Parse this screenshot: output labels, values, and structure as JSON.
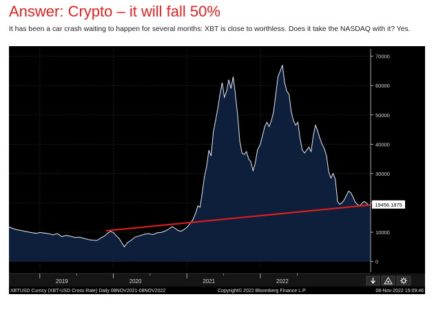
{
  "header": {
    "title": "Answer: Crypto – it will fall 50%",
    "subtitle": "It has been a car crash waiting to happen for several months: XBT is close to worthless. Does it take the NASDAQ with it? Yes."
  },
  "chart_data": {
    "type": "area",
    "series": [
      {
        "values": [
          [
            2018.58,
            11800
          ],
          [
            2018.64,
            11200
          ],
          [
            2018.7,
            10800
          ],
          [
            2018.76,
            10500
          ],
          [
            2018.82,
            10200
          ],
          [
            2018.88,
            9900
          ],
          [
            2018.95,
            9600
          ],
          [
            2019.0,
            9900
          ],
          [
            2019.06,
            9700
          ],
          [
            2019.12,
            9500
          ],
          [
            2019.18,
            9100
          ],
          [
            2019.24,
            9500
          ],
          [
            2019.3,
            8500
          ],
          [
            2019.36,
            8900
          ],
          [
            2019.42,
            8600
          ],
          [
            2019.48,
            8200
          ],
          [
            2019.54,
            8300
          ],
          [
            2019.6,
            7900
          ],
          [
            2019.66,
            7500
          ],
          [
            2019.72,
            7300
          ],
          [
            2019.78,
            7200
          ],
          [
            2019.84,
            8200
          ],
          [
            2019.88,
            8700
          ],
          [
            2019.92,
            9600
          ],
          [
            2019.96,
            10300
          ],
          [
            2020.0,
            9900
          ],
          [
            2020.04,
            8800
          ],
          [
            2020.08,
            7800
          ],
          [
            2020.12,
            6200
          ],
          [
            2020.15,
            5000
          ],
          [
            2020.19,
            6400
          ],
          [
            2020.24,
            7200
          ],
          [
            2020.3,
            8400
          ],
          [
            2020.36,
            8800
          ],
          [
            2020.42,
            9300
          ],
          [
            2020.48,
            9500
          ],
          [
            2020.54,
            9200
          ],
          [
            2020.6,
            9800
          ],
          [
            2020.66,
            10000
          ],
          [
            2020.72,
            10600
          ],
          [
            2020.76,
            11200
          ],
          [
            2020.8,
            11900
          ],
          [
            2020.84,
            11300
          ],
          [
            2020.88,
            10600
          ],
          [
            2020.92,
            10300
          ],
          [
            2020.96,
            10900
          ],
          [
            2021.0,
            11600
          ],
          [
            2021.04,
            12800
          ],
          [
            2021.08,
            14200
          ],
          [
            2021.12,
            16500
          ],
          [
            2021.15,
            19000
          ],
          [
            2021.18,
            18500
          ],
          [
            2021.21,
            23500
          ],
          [
            2021.24,
            29000
          ],
          [
            2021.27,
            32500
          ],
          [
            2021.3,
            38000
          ],
          [
            2021.33,
            36000
          ],
          [
            2021.36,
            44000
          ],
          [
            2021.39,
            48000
          ],
          [
            2021.42,
            52000
          ],
          [
            2021.45,
            57000
          ],
          [
            2021.48,
            61000
          ],
          [
            2021.51,
            56000
          ],
          [
            2021.54,
            58000
          ],
          [
            2021.57,
            62000
          ],
          [
            2021.6,
            59000
          ],
          [
            2021.63,
            63000
          ],
          [
            2021.66,
            57000
          ],
          [
            2021.69,
            50000
          ],
          [
            2021.72,
            41000
          ],
          [
            2021.75,
            37000
          ],
          [
            2021.78,
            36500
          ],
          [
            2021.81,
            37500
          ],
          [
            2021.84,
            35000
          ],
          [
            2021.87,
            34000
          ],
          [
            2021.9,
            31000
          ],
          [
            2021.93,
            33500
          ],
          [
            2021.96,
            38000
          ],
          [
            2022.0,
            40000
          ],
          [
            2022.03,
            43000
          ],
          [
            2022.06,
            46000
          ],
          [
            2022.09,
            47500
          ],
          [
            2022.12,
            46000
          ],
          [
            2022.15,
            48000
          ],
          [
            2022.18,
            51000
          ],
          [
            2022.21,
            57000
          ],
          [
            2022.24,
            63000
          ],
          [
            2022.27,
            65000
          ],
          [
            2022.3,
            67000
          ],
          [
            2022.33,
            61000
          ],
          [
            2022.36,
            58000
          ],
          [
            2022.39,
            57000
          ],
          [
            2022.42,
            51000
          ],
          [
            2022.45,
            48000
          ],
          [
            2022.48,
            46500
          ],
          [
            2022.51,
            47500
          ],
          [
            2022.54,
            42000
          ],
          [
            2022.57,
            38000
          ],
          [
            2022.6,
            37000
          ],
          [
            2022.63,
            38000
          ],
          [
            2022.66,
            39000
          ],
          [
            2022.69,
            37500
          ],
          [
            2022.72,
            43000
          ],
          [
            2022.75,
            46500
          ],
          [
            2022.78,
            44500
          ],
          [
            2022.81,
            42000
          ],
          [
            2022.84,
            40000
          ],
          [
            2022.87,
            38500
          ],
          [
            2022.9,
            36000
          ],
          [
            2022.93,
            30500
          ],
          [
            2022.96,
            28500
          ],
          [
            2022.99,
            30000
          ],
          [
            2023.02,
            28000
          ],
          [
            2023.05,
            20500
          ],
          [
            2023.08,
            19500
          ],
          [
            2023.11,
            20000
          ],
          [
            2023.14,
            21000
          ],
          [
            2023.17,
            22500
          ],
          [
            2023.2,
            24000
          ],
          [
            2023.23,
            23500
          ],
          [
            2023.26,
            22000
          ],
          [
            2023.29,
            20200
          ],
          [
            2023.32,
            19500
          ],
          [
            2023.35,
            19000
          ],
          [
            2023.38,
            19800
          ],
          [
            2023.41,
            20500
          ],
          [
            2023.44,
            20000
          ],
          [
            2023.47,
            19300
          ],
          [
            2023.5,
            19456.1875
          ]
        ]
      }
    ],
    "trendline": {
      "color": "#e01e1e",
      "from": [
        2019.9,
        10500
      ],
      "to": [
        2023.5,
        19300
      ]
    },
    "x_ticks": [
      {
        "label": "2019",
        "pos": 2019.0
      },
      {
        "label": "2020",
        "pos": 2020.0
      },
      {
        "label": "2021",
        "pos": 2021.0
      },
      {
        "label": "2022",
        "pos": 2022.0
      }
    ],
    "xlim": [
      2018.58,
      2023.5
    ],
    "y_ticks": [
      0,
      10000,
      20000,
      30000,
      40000,
      50000,
      60000,
      70000
    ],
    "ylim": [
      -2200,
      72500
    ],
    "last_value_label": "19456.1875",
    "grid": true,
    "colors": {
      "background": "#000000",
      "area_fill": "#0e1f3b",
      "line": "#e6ecf5",
      "trendline": "#e01e1e",
      "grid": "#2a2a2a",
      "axis_text": "#d8d8d8",
      "footer_bg": "#151515"
    }
  },
  "footer": {
    "left_text": "XBTUSD Curncy (XBT-USD Cross Rate)  Daily 08NOV2021-08NOV2022",
    "center_text": "Copyright© 2022 Bloomberg Finance L.P.",
    "right_text": "08-Nov-2022 15:09:46",
    "icons": [
      "download-icon",
      "chart-settings-icon",
      "chart-tools-icon"
    ]
  }
}
